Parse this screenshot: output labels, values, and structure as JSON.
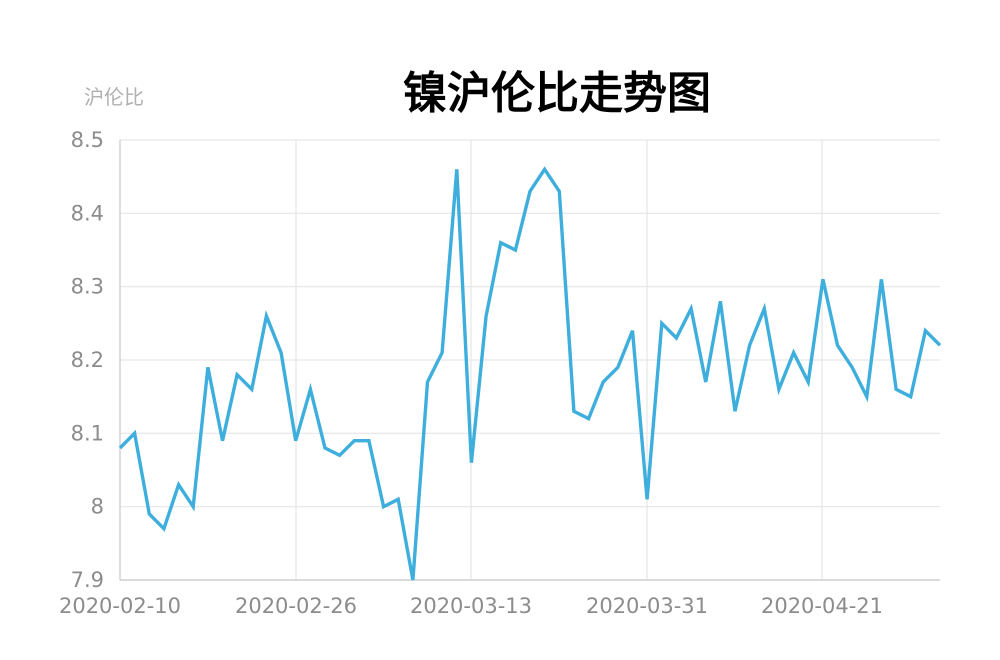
{
  "chart_data": {
    "type": "line",
    "title": "镍沪伦比走势图",
    "ylabel": "沪伦比",
    "xlabel": "",
    "ylim": [
      7.9,
      8.5
    ],
    "yticks": [
      "8.5",
      "8.4",
      "8.3",
      "8.2",
      "8.1",
      "8",
      "7.9"
    ],
    "xticks": [
      "2020-02-10",
      "2020-02-26",
      "2020-03-13",
      "2020-03-31",
      "2020-04-21"
    ],
    "grid": true,
    "color": "#3eaedd",
    "series": [
      {
        "values": [
          8.08,
          8.1,
          7.99,
          7.97,
          8.03,
          8.0,
          8.19,
          8.09,
          8.18,
          8.16,
          8.26,
          8.21,
          8.09,
          8.16,
          8.08,
          8.07,
          8.09,
          8.09,
          8.0,
          8.01,
          7.9,
          8.17,
          8.21,
          8.46,
          8.06,
          8.26,
          8.36,
          8.35,
          8.43,
          8.46,
          8.43,
          8.13,
          8.12,
          8.17,
          8.19,
          8.24,
          8.01,
          8.25,
          8.23,
          8.27,
          8.17,
          8.28,
          8.13,
          8.22,
          8.27,
          8.16,
          8.21,
          8.17,
          8.31,
          8.22,
          8.19,
          8.15,
          8.31,
          8.16,
          8.15,
          8.24,
          8.22
        ]
      }
    ]
  }
}
